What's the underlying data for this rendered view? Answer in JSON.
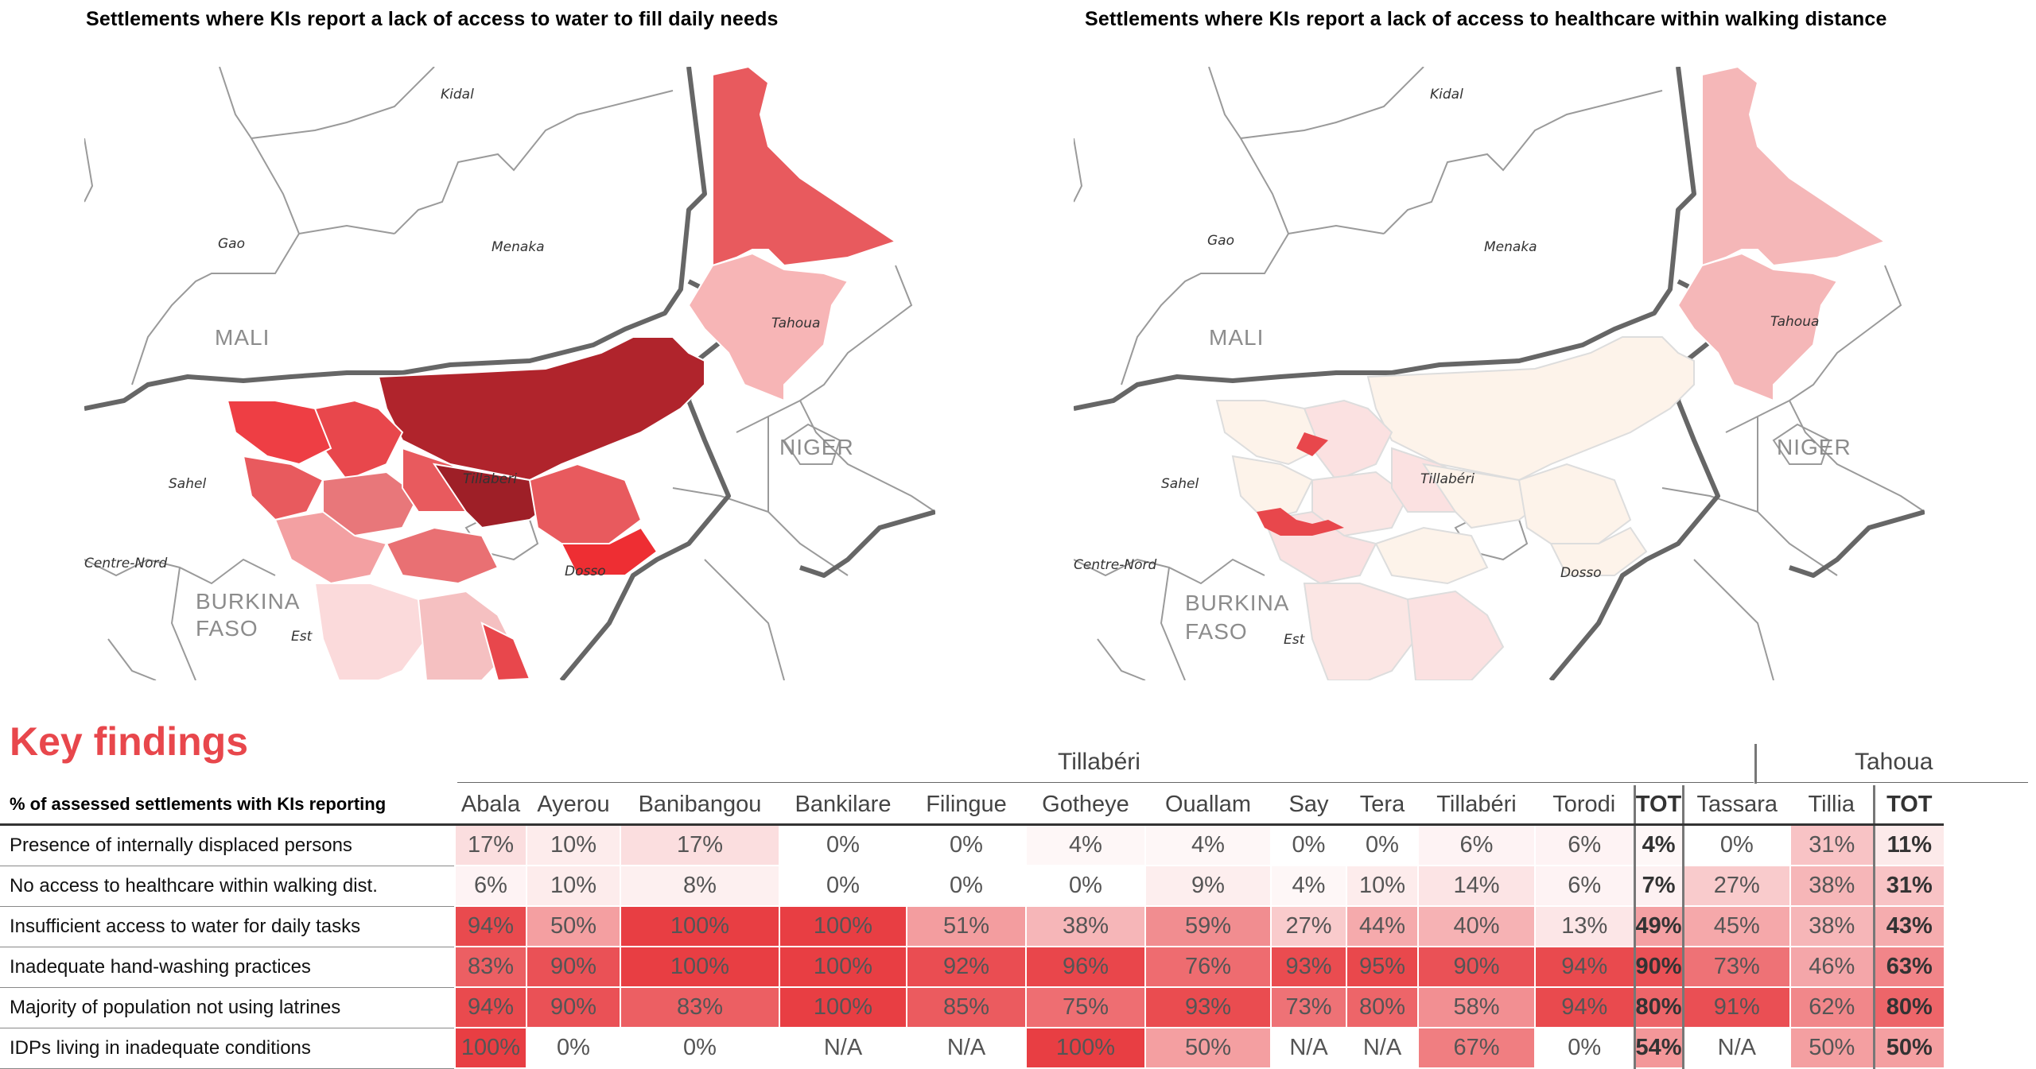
{
  "maps": [
    {
      "title": "Settlements where KIs report a lack of access to water to fill daily needs",
      "labels": {
        "kidal": "Kidal",
        "gao": "Gao",
        "menaka": "Menaka",
        "tahoua": "Tahoua",
        "mali": "MALI",
        "niger": "NIGER",
        "sahel": "Sahel",
        "tillaberi": "Tillaberi",
        "centre_nord": "Centre-Nord",
        "burkina": "BURKINA",
        "faso": "FASO",
        "est": "Est",
        "dosso": "Dosso"
      }
    },
    {
      "title": "Settlements where KIs report a lack of access to healthcare within walking distance",
      "labels": {
        "kidal": "Kidal",
        "gao": "Gao",
        "menaka": "Menaka",
        "tahoua": "Tahoua",
        "mali": "MALI",
        "niger": "NIGER",
        "sahel": "Sahel",
        "tillaberi": "Tillabéri",
        "centre_nord": "Centre-Nord",
        "burkina": "BURKINA",
        "faso": "FASO",
        "est": "Est",
        "dosso": "Dosso"
      }
    }
  ],
  "key_findings": {
    "title": "Key findings",
    "region_tillaberi": "Tillabéri",
    "region_tahoua": "Tahoua",
    "row_header": "% of assessed settlements with KIs reporting",
    "columns": [
      "Abala",
      "Ayerou",
      "Banibangou",
      "Bankilare",
      "Filingue",
      "Gotheye",
      "Ouallam",
      "Say",
      "Tera",
      "Tillabéri",
      "Torodi",
      "TOT",
      "Tassara",
      "Tillia",
      "TOT"
    ],
    "rows": [
      {
        "label": "Presence of internally displaced persons",
        "values": [
          "17%",
          "10%",
          "17%",
          "0%",
          "0%",
          "4%",
          "4%",
          "0%",
          "0%",
          "6%",
          "6%",
          "4%",
          "0%",
          "31%",
          "11%"
        ]
      },
      {
        "label": "No access to healthcare within walking dist.",
        "values": [
          "6%",
          "10%",
          "8%",
          "0%",
          "0%",
          "0%",
          "9%",
          "4%",
          "10%",
          "14%",
          "6%",
          "7%",
          "27%",
          "38%",
          "31%"
        ]
      },
      {
        "label": "Insufficient access to water for daily tasks",
        "values": [
          "94%",
          "50%",
          "100%",
          "100%",
          "51%",
          "38%",
          "59%",
          "27%",
          "44%",
          "40%",
          "13%",
          "49%",
          "45%",
          "38%",
          "43%"
        ]
      },
      {
        "label": "Inadequate hand-washing practices",
        "values": [
          "83%",
          "90%",
          "100%",
          "100%",
          "92%",
          "96%",
          "76%",
          "93%",
          "95%",
          "90%",
          "94%",
          "90%",
          "73%",
          "46%",
          "63%"
        ]
      },
      {
        "label": "Majority of population not using latrines",
        "values": [
          "94%",
          "90%",
          "83%",
          "100%",
          "85%",
          "75%",
          "93%",
          "73%",
          "80%",
          "58%",
          "94%",
          "80%",
          "91%",
          "62%",
          "80%"
        ]
      },
      {
        "label": "IDPs living in inadequate conditions",
        "values": [
          "100%",
          "0%",
          "0%",
          "N/A",
          "N/A",
          "100%",
          "50%",
          "N/A",
          "N/A",
          "67%",
          "0%",
          "54%",
          "N/A",
          "50%",
          "50%"
        ]
      }
    ],
    "colors": {
      "max": "#e83e43",
      "min": "#ffffff",
      "na": "#ffffff"
    }
  }
}
